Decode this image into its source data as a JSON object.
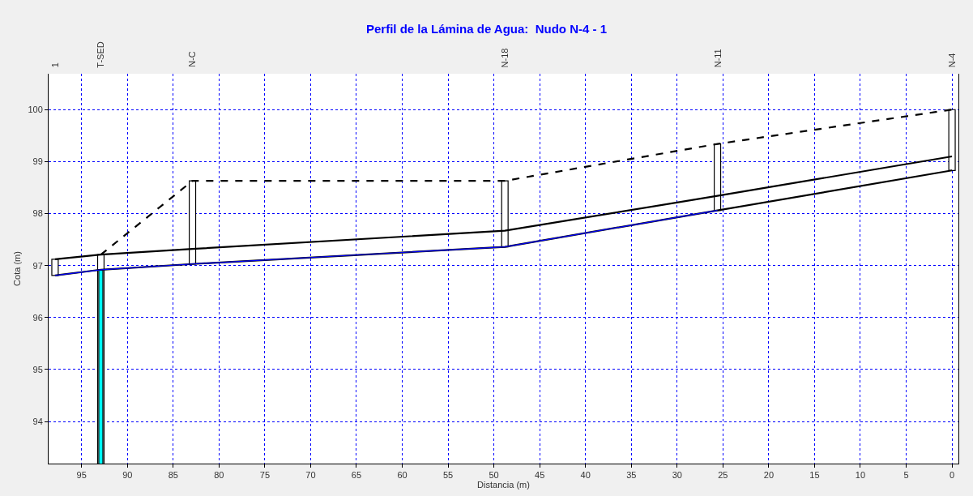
{
  "chart_data": {
    "type": "line",
    "title": "Perfil de la Lámina de Agua:  Nudo N-4 - 1",
    "xlabel": "Distancia (m)",
    "ylabel": "Cota (m)",
    "xlim": [
      98.6,
      -0.7
    ],
    "xticks": [
      95,
      90,
      85,
      80,
      75,
      70,
      65,
      60,
      55,
      50,
      45,
      40,
      35,
      30,
      25,
      20,
      15,
      10,
      5,
      0
    ],
    "ylim": [
      93.19,
      100.69
    ],
    "yticks": [
      94,
      95,
      96,
      97,
      98,
      99,
      100
    ],
    "annotations": [
      "1",
      "T-SED",
      "N-C",
      "N-18",
      "N-11",
      "N-4"
    ],
    "grid": true,
    "legend": false,
    "series": [
      {
        "line_style": "dashed",
        "color": "#000000",
        "x": [
          92.9,
          82.9,
          48.8,
          25.6,
          0
        ],
        "values": [
          97.21,
          98.63,
          98.63,
          99.34,
          100.0
        ]
      },
      {
        "line_style": "solid",
        "color": "#000000",
        "x": [
          97.9,
          92.9,
          82.9,
          48.8,
          25.6,
          0
        ],
        "values": [
          97.12,
          97.21,
          97.32,
          97.67,
          98.34,
          99.1
        ]
      },
      {
        "line_style": "solid",
        "color": "#000000",
        "x": [
          97.9,
          92.9,
          82.9,
          48.8,
          25.6,
          0
        ],
        "values": [
          96.81,
          96.92,
          97.03,
          97.36,
          98.06,
          98.83
        ]
      },
      {
        "line_style": "solid",
        "color": "#0000ff",
        "x": [
          97.9,
          92.9,
          82.9,
          48.8,
          25.6
        ],
        "values": [
          96.81,
          96.92,
          97.03,
          97.36,
          98.06
        ]
      },
      {
        "type": "bar",
        "color": "#ffffff",
        "x": [
          97.9,
          82.9,
          48.8,
          25.6,
          0
        ],
        "base": [
          96.81,
          97.03,
          97.36,
          98.06,
          98.83
        ],
        "values": [
          0.31,
          1.6,
          1.27,
          1.28,
          1.17
        ]
      },
      {
        "type": "bar",
        "color": "#ffffff",
        "x": [
          92.9
        ],
        "values": [
          97.21
        ]
      },
      {
        "type": "bar",
        "color": "#00ffff",
        "x": [
          92.9
        ],
        "values": [
          96.92
        ]
      }
    ]
  }
}
